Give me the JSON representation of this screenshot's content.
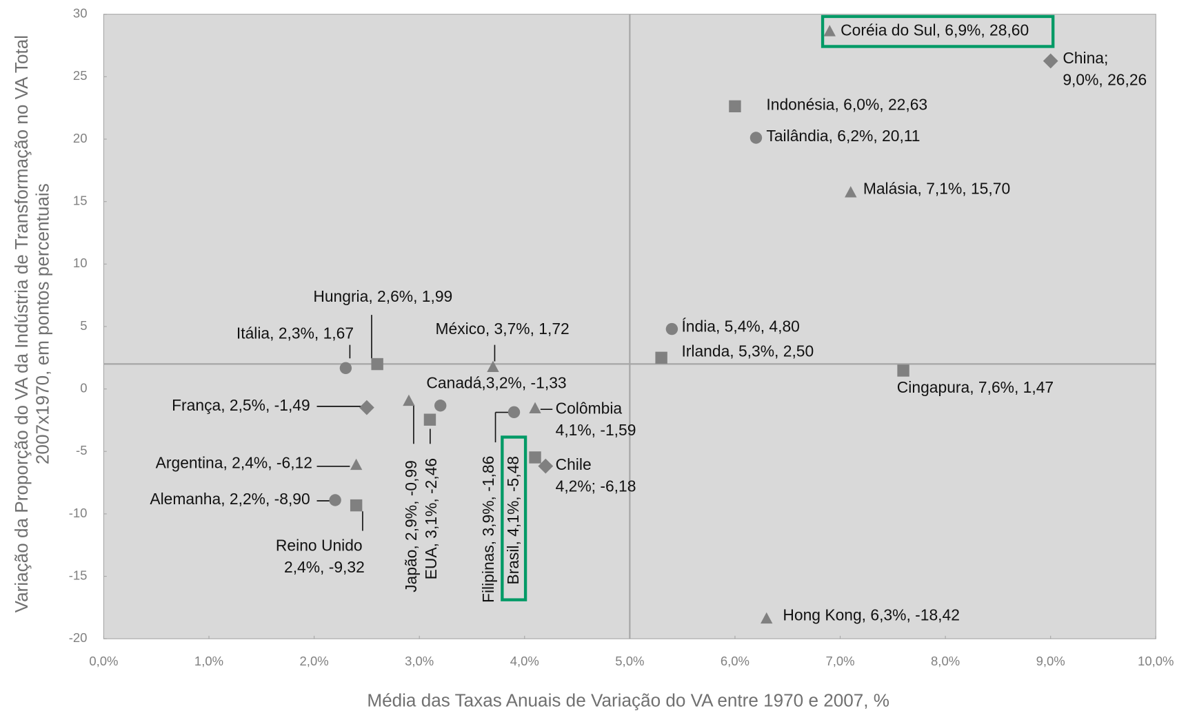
{
  "chart_data": {
    "type": "scatter",
    "x_label": "Média das Taxas Anuais de Variação do VA entre 1970 e 2007, %",
    "y_label": [
      "Variação da Proporção do VA da Indústria de Transformação no VA Total",
      "2007x1970, em pontos percentuais"
    ],
    "x": [
      6.9,
      9.0,
      6.0,
      6.2,
      7.1,
      5.4,
      5.3,
      7.6,
      6.3,
      2.6,
      2.3,
      3.7,
      3.2,
      2.5,
      2.4,
      2.2,
      2.4,
      2.9,
      3.1,
      3.9,
      4.1,
      4.1,
      4.2
    ],
    "values": [
      28.6,
      26.26,
      22.63,
      20.11,
      15.7,
      4.8,
      2.5,
      1.47,
      -18.42,
      1.99,
      1.67,
      1.72,
      -1.33,
      -1.49,
      -6.12,
      -8.9,
      -9.32,
      -0.99,
      -2.46,
      -1.86,
      -5.48,
      -1.59,
      -6.18
    ],
    "markers": [
      "triangle",
      "diamond",
      "square",
      "circle",
      "triangle",
      "circle",
      "square",
      "square",
      "triangle",
      "square",
      "circle",
      "triangle",
      "circle",
      "diamond",
      "triangle",
      "circle",
      "square",
      "triangle",
      "square",
      "circle",
      "square",
      "triangle",
      "diamond"
    ],
    "value_labels": [
      [
        "Coréia do Sul, 6,9%, 28,60"
      ],
      [
        "China;",
        "9,0%, 26,26"
      ],
      [
        "Indonésia, 6,0%, 22,63"
      ],
      [
        "Tailândia, 6,2%, 20,11"
      ],
      [
        "Malásia, 7,1%, 15,70"
      ],
      [
        "Índia, 5,4%, 4,80"
      ],
      [
        "Irlanda, 5,3%, 2,50"
      ],
      [
        "Cingapura, 7,6%, 1,47"
      ],
      [
        "Hong Kong, 6,3%, -18,42"
      ],
      [
        "Hungria, 2,6%, 1,99"
      ],
      [
        "Itália, 2,3%, 1,67"
      ],
      [
        "México, 3,7%, 1,72"
      ],
      [
        "Canadá,3,2%, -1,33"
      ],
      [
        "França, 2,5%, -1,49"
      ],
      [
        "Argentina, 2,4%, -6,12"
      ],
      [
        "Alemanha, 2,2%, -8,90"
      ],
      [
        "Reino Unido",
        "2,4%, -9,32"
      ],
      [
        "Japão, 2,9%, -0,99"
      ],
      [
        "EUA, 3,1%, -2,46"
      ],
      [
        "Filipinas, 3,9%, -1,86"
      ],
      [
        "Brasil, 4,1%, -5,48"
      ],
      [
        "Colômbia",
        "4,1%, -1,59"
      ],
      [
        "Chile",
        "4,2%; -6,18"
      ]
    ],
    "color": "#808080",
    "highlighted": [
      0,
      20
    ],
    "highlight_color": "#009a66",
    "reference_lines": {
      "x": 5,
      "y": 2
    },
    "xlim": [
      0,
      10
    ],
    "ylim": [
      -20,
      30
    ],
    "xticks": [
      {
        "value": 0,
        "label": "0,0%"
      },
      {
        "value": 1,
        "label": "1,0%"
      },
      {
        "value": 2,
        "label": "2,0%"
      },
      {
        "value": 3,
        "label": "3,0%"
      },
      {
        "value": 4,
        "label": "4,0%"
      },
      {
        "value": 5,
        "label": "5,0%"
      },
      {
        "value": 6,
        "label": "6,0%"
      },
      {
        "value": 7,
        "label": "7,0%"
      },
      {
        "value": 8,
        "label": "8,0%"
      },
      {
        "value": 9,
        "label": "9,0%"
      },
      {
        "value": 10,
        "label": "10,0%"
      }
    ],
    "yticks": [
      30,
      25,
      20,
      15,
      10,
      5,
      0,
      -5,
      -10,
      -15,
      -20
    ]
  }
}
